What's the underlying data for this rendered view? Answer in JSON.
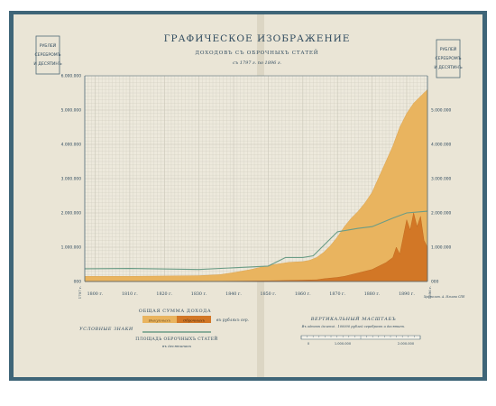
{
  "page": {
    "title": "ГРАФИЧЕСКОЕ ИЗОБРАЖЕНИЕ",
    "subtitle": "ДОХОДОВЪ СЪ ОБРОЧНЫХЪ СТАТЕЙ",
    "period": "съ 1797 г. по 1896 г.",
    "left_unit": [
      "РУБЛЕЙ",
      "СЕРЕБРОМЪ",
      "И ДЕСЯТИНЪ"
    ],
    "right_unit": [
      "РУБЛЕЙ",
      "СЕРЕБРОМЪ",
      "И ДЕСЯТИНЪ"
    ],
    "scale_label": "УСЛОВНЫЕ ЗНАКИ",
    "vertical_scale": "ВЕРТИКАЛЬНЫЙ МАСШТАБЪ",
    "vertical_scale_note": "Въ одномъ делениі . 100000 рублей серебромъ и десятинъ.",
    "corner_note": "Хромолит. А. Ильина СПб",
    "colors": {
      "paper": "#eae5d6",
      "grid": "#c9c6b8",
      "frame": "#4f6a78",
      "area_light": "#e9b45f",
      "area_dark": "#d27726",
      "line": "#6a9c86",
      "text": "#2f4a5e"
    }
  },
  "legend": {
    "title": "ОБЩАЯ СУММА ДОХОДА",
    "unit": "въ рубляхъ сер.",
    "light_label": "Выкупныхъ",
    "dark_label": "Оброчныхъ",
    "line_label": "ПЛОЩАДЬ ОБРОЧНЫХЪ СТАТЕЙ",
    "line_sublabel": "въ десятинахъ"
  },
  "scale_bar": {
    "ticks": [
      "0",
      "1.000.000",
      "2.000.000"
    ]
  },
  "chart_data": {
    "type": "area",
    "title": "ГРАФИЧЕСКОЕ ИЗОБРАЖЕНИЕ",
    "subtitle": "ДОХОДОВЪ СЪ ОБРОЧНЫХЪ СТАТЕЙ",
    "x_ticks": [
      1800,
      1810,
      1820,
      1830,
      1840,
      1850,
      1860,
      1870,
      1880,
      1890
    ],
    "x_tick_labels": [
      "1800 г.",
      "1810 г.",
      "1820 г.",
      "1830 г.",
      "1840 г.",
      "1850 г.",
      "1860 г.",
      "1870 г.",
      "1880 г.",
      "1890 г."
    ],
    "x_start_label": "1797 г.",
    "x_end_label": "1896 г.",
    "xlim": [
      1797,
      1896
    ],
    "y_ticks": [
      0,
      1000000,
      2000000,
      3000000,
      4000000,
      5000000,
      6000000
    ],
    "y_tick_labels_left": [
      "000",
      "1.000.000",
      "2.000.000",
      "3.000.000",
      "4.000.000",
      "5.000.000",
      "6.000.000"
    ],
    "y_tick_labels_right": [
      "000",
      "1.000.000",
      "2.000.000",
      "3.000.000",
      "4.000.000",
      "5.000.000"
    ],
    "ylim": [
      0,
      6000000
    ],
    "grid": true,
    "series": [
      {
        "name": "Выкупныхъ",
        "role": "total_income",
        "x": [
          1797,
          1810,
          1820,
          1830,
          1836,
          1840,
          1845,
          1848,
          1852,
          1856,
          1860,
          1862,
          1864,
          1866,
          1868,
          1870,
          1872,
          1874,
          1876,
          1878,
          1880,
          1882,
          1884,
          1886,
          1888,
          1890,
          1892,
          1894,
          1896
        ],
        "values": [
          150000,
          150000,
          160000,
          170000,
          200000,
          260000,
          350000,
          420000,
          500000,
          560000,
          580000,
          620000,
          700000,
          850000,
          1050000,
          1300000,
          1600000,
          1850000,
          2050000,
          2300000,
          2600000,
          3050000,
          3500000,
          3950000,
          4500000,
          4900000,
          5200000,
          5400000,
          5600000
        ]
      },
      {
        "name": "Оброчныхъ",
        "role": "obrok_income",
        "x": [
          1797,
          1830,
          1850,
          1860,
          1864,
          1866,
          1868,
          1870,
          1872,
          1874,
          1876,
          1878,
          1880,
          1882,
          1884,
          1886,
          1887,
          1888,
          1889,
          1890,
          1891,
          1892,
          1893,
          1894,
          1895,
          1896
        ],
        "values": [
          0,
          0,
          20000,
          40000,
          50000,
          80000,
          100000,
          120000,
          150000,
          200000,
          250000,
          300000,
          350000,
          450000,
          550000,
          700000,
          1000000,
          800000,
          1300000,
          1800000,
          1500000,
          2000000,
          1600000,
          1900000,
          1200000,
          1000000
        ]
      },
      {
        "name": "ПЛОЩАДЬ ОБРОЧНЫХЪ СТАТЕЙ",
        "role": "area_line",
        "x": [
          1797,
          1810,
          1830,
          1840,
          1850,
          1855,
          1860,
          1863,
          1870,
          1876,
          1880,
          1886,
          1890,
          1896
        ],
        "values": [
          370000,
          380000,
          350000,
          400000,
          450000,
          700000,
          700000,
          750000,
          1450000,
          1550000,
          1600000,
          1850000,
          2000000,
          2050000
        ]
      }
    ]
  }
}
